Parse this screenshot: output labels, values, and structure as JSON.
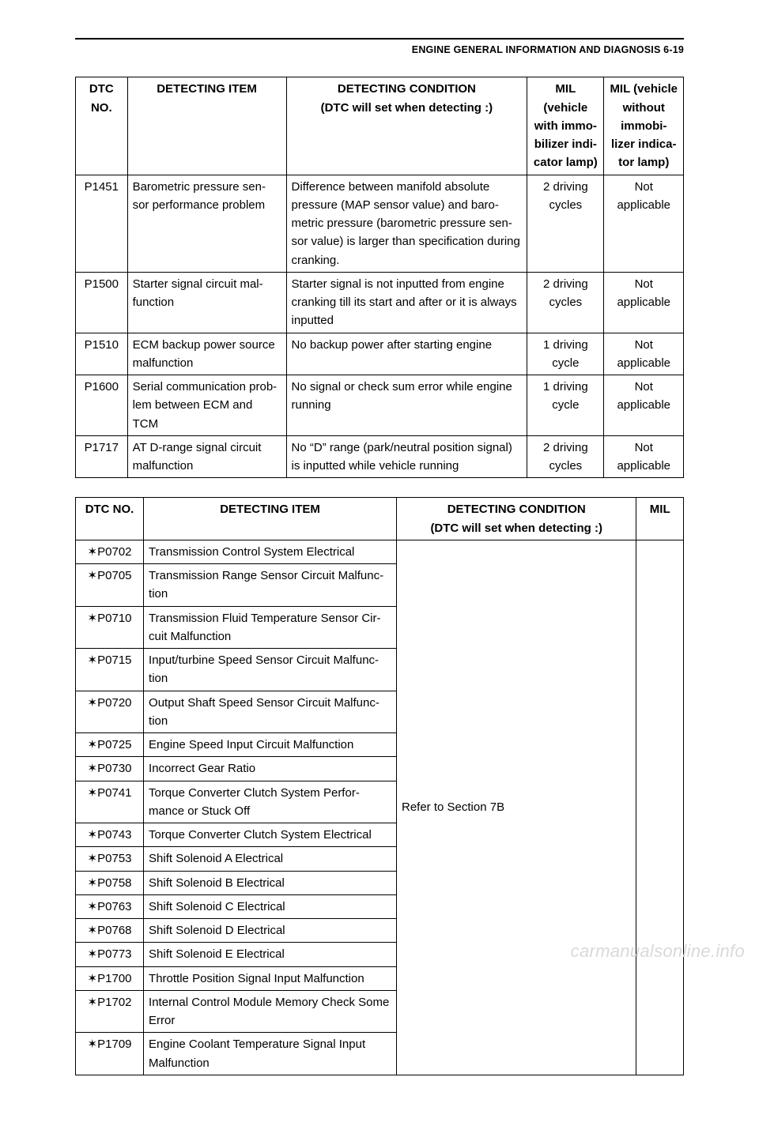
{
  "page_header": "ENGINE GENERAL INFORMATION AND DIAGNOSIS 6-19",
  "watermark": "carmanualsonline.info",
  "table1": {
    "headers": {
      "dtc_no": "DTC NO.",
      "detecting_item": "DETECTING ITEM",
      "detecting_condition": "DETECTING CONDITION",
      "detecting_condition_sub": "(DTC will set when detecting :)",
      "mil_with": "MIL (vehicle with immo-bilizer indi-cator lamp)",
      "mil_without": "MIL (vehicle without immobi-lizer indica-tor lamp)"
    },
    "rows": [
      {
        "dtc": "P1451",
        "item": "Barometric pressure sen-sor performance problem",
        "condition": "Difference between manifold absolute pressure (MAP sensor value) and baro-metric pressure (barometric pressure sen-sor value) is larger than specification during cranking.",
        "mil_with": "2 driving cycles",
        "mil_without": "Not applicable"
      },
      {
        "dtc": "P1500",
        "item": "Starter signal circuit mal-function",
        "condition": "Starter signal is not inputted from engine cranking till its start and after or it is always inputted",
        "mil_with": "2 driving cycles",
        "mil_without": "Not applicable"
      },
      {
        "dtc": "P1510",
        "item": "ECM backup power source malfunction",
        "condition": "No backup power after starting engine",
        "mil_with": "1 driving cycle",
        "mil_without": "Not applicable"
      },
      {
        "dtc": "P1600",
        "item": "Serial communication prob-lem between ECM and TCM",
        "condition": "No signal or check sum error while engine running",
        "mil_with": "1 driving cycle",
        "mil_without": "Not applicable"
      },
      {
        "dtc": "P1717",
        "item": "AT D-range signal circuit malfunction",
        "condition": "No “D” range (park/neutral position signal) is inputted while vehicle running",
        "mil_with": "2 driving cycles",
        "mil_without": "Not applicable"
      }
    ]
  },
  "table2": {
    "headers": {
      "dtc_no": "DTC NO.",
      "detecting_item": "DETECTING ITEM",
      "detecting_condition": "DETECTING CONDITION",
      "detecting_condition_sub": "(DTC will set when detecting :)",
      "mil": "MIL"
    },
    "condition_merged": "Refer to Section 7B",
    "star": "✶",
    "rows": [
      {
        "dtc": "P0702",
        "item": "Transmission Control System Electrical"
      },
      {
        "dtc": "P0705",
        "item": "Transmission Range Sensor Circuit Malfunc-tion"
      },
      {
        "dtc": "P0710",
        "item": "Transmission Fluid Temperature Sensor Cir-cuit Malfunction"
      },
      {
        "dtc": "P0715",
        "item": "Input/turbine Speed Sensor Circuit Malfunc-tion"
      },
      {
        "dtc": "P0720",
        "item": "Output Shaft Speed Sensor Circuit Malfunc-tion"
      },
      {
        "dtc": "P0725",
        "item": "Engine Speed Input Circuit Malfunction"
      },
      {
        "dtc": "P0730",
        "item": "Incorrect Gear Ratio"
      },
      {
        "dtc": "P0741",
        "item": "Torque Converter Clutch System Perfor-mance or Stuck Off"
      },
      {
        "dtc": "P0743",
        "item": "Torque Converter Clutch System Electrical"
      },
      {
        "dtc": "P0753",
        "item": "Shift Solenoid A Electrical"
      },
      {
        "dtc": "P0758",
        "item": "Shift Solenoid B Electrical"
      },
      {
        "dtc": "P0763",
        "item": "Shift Solenoid C Electrical"
      },
      {
        "dtc": "P0768",
        "item": "Shift Solenoid D Electrical"
      },
      {
        "dtc": "P0773",
        "item": "Shift Solenoid E Electrical"
      },
      {
        "dtc": "P1700",
        "item": "Throttle Position Signal Input Malfunction"
      },
      {
        "dtc": "P1702",
        "item": "Internal Control Module Memory Check Some Error"
      },
      {
        "dtc": "P1709",
        "item": "Engine Coolant Temperature Signal Input Malfunction"
      }
    ]
  }
}
